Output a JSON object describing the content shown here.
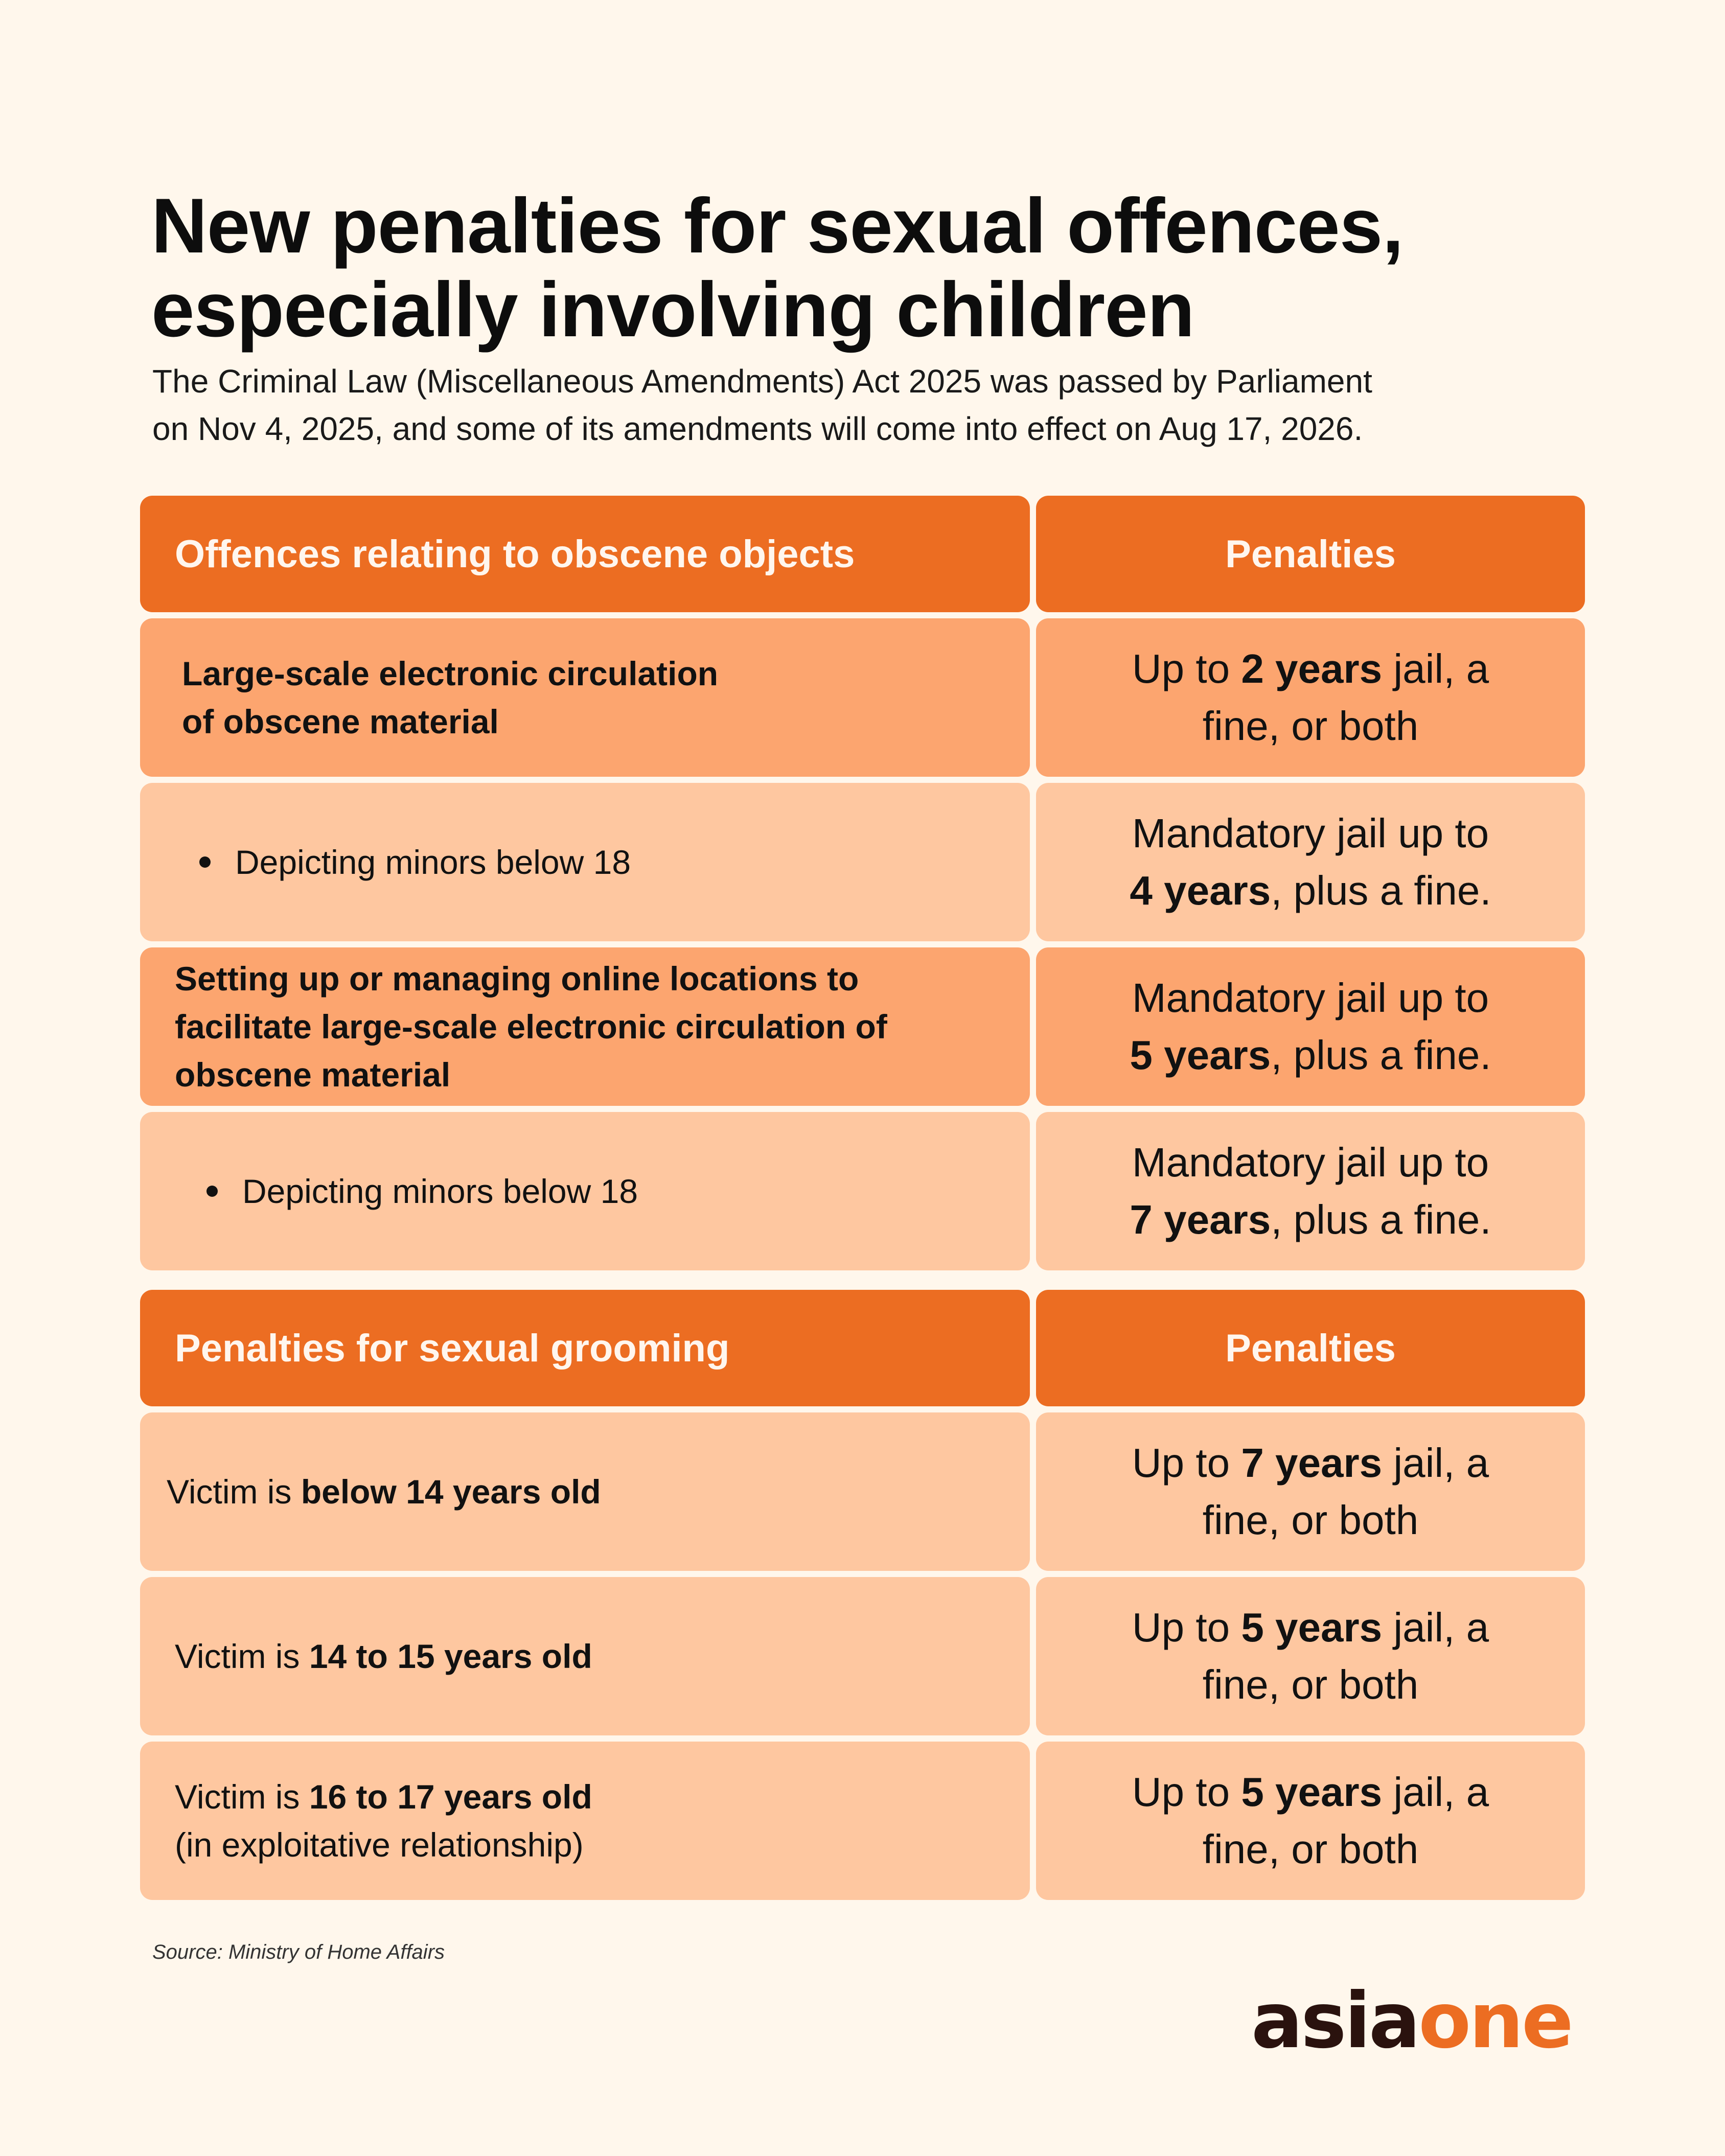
{
  "title": [
    "New penalties for sexual offences,",
    "especially involving children"
  ],
  "subtitle": [
    "The Criminal Law (Miscellaneous Amendments) Act 2025 was passed by Parliament",
    "on Nov 4, 2025, and some of its amendments will come into effect on Aug 17, 2026."
  ],
  "colors": {
    "header": "#EC6D22",
    "row_dark": "#FCA56F",
    "row_light": "#FEC7A0",
    "background": "#FFF7EC"
  },
  "table1": {
    "header_left": "Offences relating to obscene objects",
    "header_right": "Penalties",
    "rows": [
      {
        "offence": [
          "Large-scale electronic circulation",
          "of obscene material"
        ],
        "penalty": {
          "l1_pre": "Up to ",
          "l1_bold": "2 years",
          "l1_post": " jail, a",
          "l2": "fine, or both"
        }
      },
      {
        "offence": [
          "Depicting minors below 18"
        ],
        "penalty": {
          "l1": "Mandatory jail up to",
          "l2_bold": "4 years",
          "l2_post": ", plus a fine."
        }
      },
      {
        "offence": [
          "Setting up or managing online locations to",
          "facilitate large-scale electronic circulation of",
          "obscene material"
        ],
        "penalty": {
          "l1": "Mandatory jail up to",
          "l2_bold": "5 years",
          "l2_post": ", plus a fine."
        }
      },
      {
        "offence": [
          "Depicting minors below 18"
        ],
        "penalty": {
          "l1": "Mandatory jail up to",
          "l2_bold": "7 years",
          "l2_post": ", plus a fine."
        }
      }
    ]
  },
  "table2": {
    "header_left": "Penalties for sexual grooming",
    "header_right": "Penalties",
    "rows": [
      {
        "pre": "Victim is ",
        "bold": "below 14 years old",
        "note": "",
        "penalty": {
          "l1_pre": "Up to ",
          "l1_bold": "7 years",
          "l1_post": " jail, a",
          "l2": "fine, or both"
        }
      },
      {
        "pre": "Victim is ",
        "bold": "14 to 15 years old",
        "note": "",
        "penalty": {
          "l1_pre": "Up to ",
          "l1_bold": "5 years",
          "l1_post": " jail, a",
          "l2": "fine, or both"
        }
      },
      {
        "pre": "Victim is ",
        "bold": "16 to 17 years old",
        "note": "(in exploitative relationship)",
        "penalty": {
          "l1_pre": "Up to ",
          "l1_bold": "5 years",
          "l1_post": " jail, a",
          "l2": "fine, or both"
        }
      }
    ]
  },
  "source": "Source: Ministry of Home Affairs",
  "logo": {
    "part1": "asia",
    "part2": "one"
  }
}
